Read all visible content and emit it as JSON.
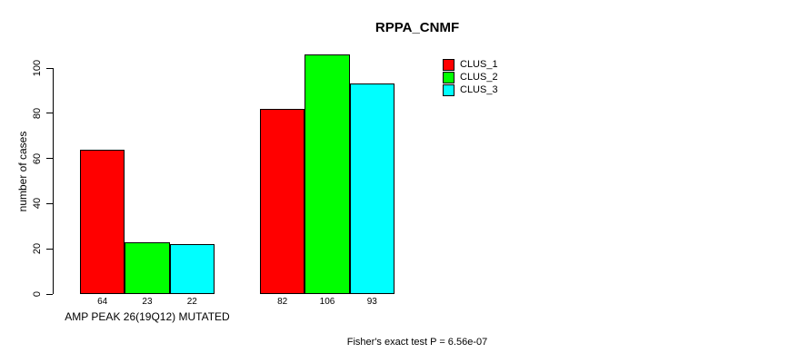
{
  "title": "RPPA_CNMF",
  "footer": "Fisher's exact test P = 6.56e-07",
  "legend": [
    {
      "label": "CLUS_1",
      "color": "#ff0000"
    },
    {
      "label": "CLUS_2",
      "color": "#00ff00"
    },
    {
      "label": "CLUS_3",
      "color": "#00ffff"
    }
  ],
  "chart_data": {
    "type": "bar",
    "title": "RPPA_CNMF",
    "ylabel": "number of cases",
    "xlabel": "AMP PEAK 26(19Q12) MUTATED",
    "categories": [
      "AMP PEAK 26(19Q12) MUTATED",
      ""
    ],
    "series": [
      {
        "name": "CLUS_1",
        "color": "#ff0000",
        "values": [
          64,
          82
        ]
      },
      {
        "name": "CLUS_2",
        "color": "#00ff00",
        "values": [
          23,
          106
        ]
      },
      {
        "name": "CLUS_3",
        "color": "#00ffff",
        "values": [
          22,
          93
        ]
      }
    ],
    "bar_value_labels": [
      [
        64,
        23,
        22
      ],
      [
        82,
        106,
        93
      ]
    ],
    "yticks": [
      0,
      20,
      40,
      60,
      80,
      100
    ],
    "ylim": [
      0,
      110
    ],
    "grid": false,
    "legend_position": "top-right",
    "annotation": "Fisher's exact test P = 6.56e-07"
  }
}
